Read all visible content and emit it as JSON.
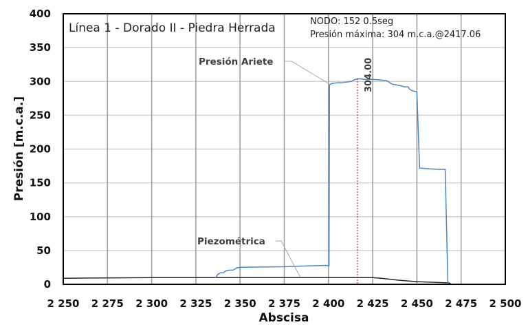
{
  "chart_data": {
    "type": "line",
    "title": "Línea 1 - Dorado II - Piedra Herrada",
    "info_lines": [
      "NODO: 152 0.5seg",
      "Presión máxima: 304 m.c.a.@2417.06"
    ],
    "xlabel": "Abscisa",
    "ylabel": "Presión [m.c.a.]",
    "xlim": [
      2250,
      2500
    ],
    "ylim": [
      0,
      400
    ],
    "x_ticks": [
      2250,
      2275,
      2300,
      2325,
      2350,
      2375,
      2400,
      2425,
      2450,
      2475,
      2500
    ],
    "x_tick_labels": [
      "2 250",
      "2 275",
      "2 300",
      "2 325",
      "2 350",
      "2 375",
      "2 400",
      "2 425",
      "2 450",
      "2 475",
      "2 500"
    ],
    "y_ticks": [
      0,
      50,
      100,
      150,
      200,
      250,
      300,
      350,
      400
    ],
    "y_tick_labels": [
      "0",
      "50",
      "100",
      "150",
      "200",
      "250",
      "300",
      "350",
      "400"
    ],
    "grid": true,
    "legend": "none (inline callout labels)",
    "annotations": [
      {
        "text": "304.00",
        "x": 2417.06,
        "y": 304,
        "type": "vertical-dashed-marker",
        "color": "#c00000"
      }
    ],
    "series": [
      {
        "name": "Presión Ariete",
        "color": "#4a86bf",
        "points": [
          [
            2336,
            9
          ],
          [
            2337.5,
            15
          ],
          [
            2339,
            17
          ],
          [
            2340.5,
            17
          ],
          [
            2342,
            20
          ],
          [
            2344,
            21
          ],
          [
            2346,
            21
          ],
          [
            2348,
            24
          ],
          [
            2350,
            25
          ],
          [
            2360,
            25.5
          ],
          [
            2375,
            26
          ],
          [
            2385,
            27
          ],
          [
            2399,
            28
          ],
          [
            2400.3,
            27
          ],
          [
            2400.6,
            295
          ],
          [
            2402,
            297
          ],
          [
            2405,
            298
          ],
          [
            2408,
            298
          ],
          [
            2410,
            299
          ],
          [
            2413,
            300
          ],
          [
            2415,
            303
          ],
          [
            2417.06,
            304
          ],
          [
            2420,
            303
          ],
          [
            2425,
            303
          ],
          [
            2430,
            302
          ],
          [
            2433,
            301
          ],
          [
            2436,
            296
          ],
          [
            2440,
            294
          ],
          [
            2443,
            292
          ],
          [
            2445,
            292
          ],
          [
            2446,
            288
          ],
          [
            2447.5,
            286
          ],
          [
            2449.5,
            285
          ],
          [
            2450,
            284
          ],
          [
            2451.5,
            172
          ],
          [
            2455,
            171
          ],
          [
            2462,
            170
          ],
          [
            2466,
            170
          ],
          [
            2467.5,
            2
          ],
          [
            2468.5,
            0
          ]
        ]
      },
      {
        "name": "Piezométrica",
        "color": "#262626",
        "points": [
          [
            2250,
            9
          ],
          [
            2275,
            9.5
          ],
          [
            2300,
            10
          ],
          [
            2325,
            10
          ],
          [
            2350,
            10
          ],
          [
            2375,
            10
          ],
          [
            2400,
            10
          ],
          [
            2425,
            10
          ],
          [
            2430,
            9
          ],
          [
            2440,
            6
          ],
          [
            2450,
            4
          ],
          [
            2460,
            3
          ],
          [
            2468,
            2
          ],
          [
            2469,
            1
          ]
        ]
      }
    ]
  }
}
